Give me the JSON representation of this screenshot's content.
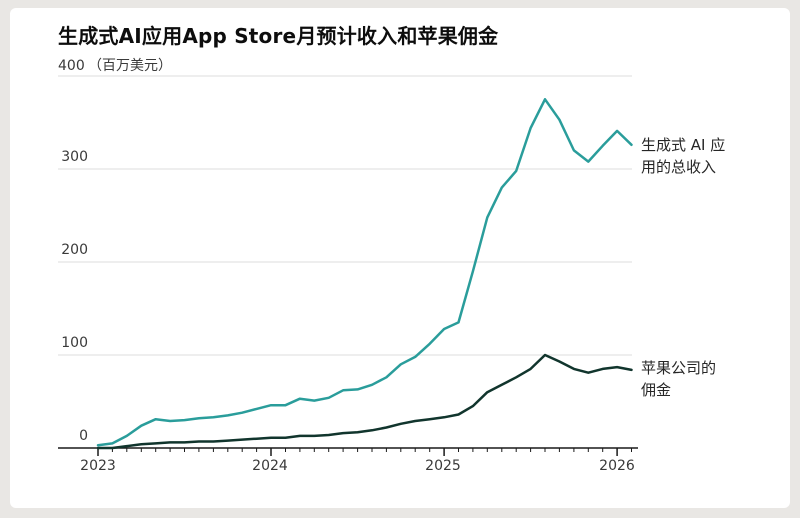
{
  "header": {
    "title": "生成式AI应用App Store月预计收入和苹果佣金"
  },
  "chart_data": {
    "type": "line",
    "title": "生成式AI应用App Store月预计收入和苹果佣金",
    "unit_label": "（百万美元）",
    "y_max_label": "400",
    "ylim": [
      0,
      400
    ],
    "gridline_values": [
      400,
      300,
      200,
      100
    ],
    "ytick_labels": [
      "300",
      "200",
      "100",
      "0"
    ],
    "xtick_labels": [
      "2023",
      "2024",
      "2025",
      "2026"
    ],
    "x_start": "2023-01",
    "x_end": "2026-02",
    "x_interval": "monthly",
    "grid": "horizontal-only",
    "legend_position": "right-edge-annotations",
    "colors": {
      "grid": "#dcdcdc",
      "axis": "#1a1a1a",
      "revenue_line": "#2a9d9b",
      "commission_line": "#11352d"
    },
    "series": [
      {
        "name": "生成式 AI 应用的总收入",
        "label_line1": "生成式 AI 应",
        "label_line2": "用的总收入",
        "color": "#2a9d9b",
        "data_name": "revenue-line",
        "values": [
          3,
          5,
          13,
          24,
          31,
          29,
          30,
          32,
          33,
          35,
          38,
          42,
          46,
          46,
          53,
          51,
          54,
          62,
          63,
          68,
          76,
          90,
          98,
          112,
          128,
          135,
          190,
          248,
          280,
          298,
          344,
          375,
          353,
          320,
          308,
          325,
          341,
          326
        ]
      },
      {
        "name": "苹果公司的佣金",
        "label_line1": "苹果公司的",
        "label_line2": "佣金",
        "color": "#11352d",
        "data_name": "commission-line",
        "values": [
          0,
          0,
          2,
          4,
          5,
          6,
          6,
          7,
          7,
          8,
          9,
          10,
          11,
          11,
          13,
          13,
          14,
          16,
          17,
          19,
          22,
          26,
          29,
          31,
          33,
          36,
          45,
          60,
          68,
          76,
          85,
          100,
          93,
          85,
          81,
          85,
          87,
          84
        ]
      }
    ]
  }
}
